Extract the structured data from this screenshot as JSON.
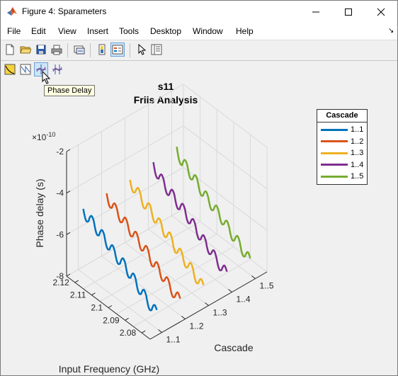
{
  "window": {
    "title": "Figure 4: Sparameters",
    "minimize_icon": "minimize-icon",
    "maximize_icon": "maximize-icon",
    "close_icon": "close-icon"
  },
  "menu": [
    "File",
    "Edit",
    "View",
    "Insert",
    "Tools",
    "Desktop",
    "Window",
    "Help"
  ],
  "tooltip": "Phase Delay",
  "axes": {
    "title_line1": "s11",
    "title_line2": "Friis Analysis",
    "exponent": "×10",
    "exponent_power": "-10",
    "zlabel": "Phase delay (s)",
    "xlabel": "Input Frequency (GHz)",
    "ylabel": "Cascade"
  },
  "chart_data": {
    "type": "line",
    "title": "s11 Friis Analysis",
    "x_axis": {
      "label": "Input Frequency (GHz)",
      "ticks": [
        "2.12",
        "2.11",
        "2.1",
        "2.09",
        "2.08"
      ],
      "lim": [
        2.075,
        2.125
      ]
    },
    "y_axis": {
      "label": "Cascade",
      "ticks": [
        "1..1",
        "1..2",
        "1..3",
        "1..4",
        "1..5"
      ]
    },
    "z_axis": {
      "label": "Phase delay (s)",
      "ticks": [
        "-2",
        "-4",
        "-6",
        "-8"
      ],
      "lim": [
        -8,
        -2
      ],
      "exponent": -10
    },
    "legend": {
      "title": "Cascade",
      "placement": "right"
    },
    "grid": true,
    "series": [
      {
        "name": "1..1",
        "color": "#0072bd",
        "z": [
          -7.1,
          -7.3,
          -6.8,
          -6.9,
          -6.4,
          -6.5,
          -6.0,
          -6.2,
          -5.8,
          -5.9,
          -5.4,
          -5.6,
          -5.1,
          -5.3,
          -4.9
        ]
      },
      {
        "name": "1..2",
        "color": "#d95319",
        "z": [
          -7.2,
          -7.3,
          -6.9,
          -6.9,
          -6.5,
          -6.6,
          -6.1,
          -6.2,
          -5.8,
          -5.9,
          -5.5,
          -5.6,
          -5.2,
          -5.3,
          -4.8
        ]
      },
      {
        "name": "1..3",
        "color": "#edb120",
        "z": [
          -7.2,
          -7.3,
          -6.8,
          -6.9,
          -6.5,
          -6.6,
          -6.1,
          -6.2,
          -5.8,
          -5.9,
          -5.4,
          -5.6,
          -5.1,
          -5.2,
          -4.8
        ]
      },
      {
        "name": "1..4",
        "color": "#7e2f8e",
        "z": [
          -7.2,
          -7.3,
          -6.9,
          -6.9,
          -6.5,
          -6.6,
          -6.1,
          -6.2,
          -5.7,
          -5.9,
          -5.4,
          -5.6,
          -5.1,
          -5.2,
          -4.6
        ]
      },
      {
        "name": "1..5",
        "color": "#77ac30",
        "z": [
          -7.2,
          -7.3,
          -6.8,
          -6.9,
          -6.5,
          -6.5,
          -6.1,
          -6.2,
          -5.8,
          -5.9,
          -5.4,
          -5.5,
          -5.0,
          -5.2,
          -4.5
        ]
      }
    ]
  }
}
